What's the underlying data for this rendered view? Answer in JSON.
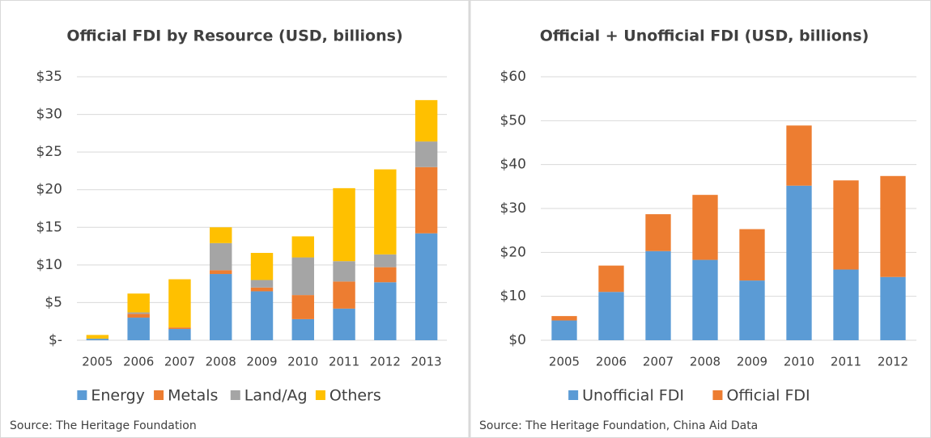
{
  "chart_data": [
    {
      "type": "stacked_bar",
      "title": "Official FDI by Resource (USD, billions)",
      "source": "Source:  The Heritage Foundation",
      "categories": [
        "2005",
        "2006",
        "2007",
        "2008",
        "2009",
        "2010",
        "2011",
        "2012",
        "2013"
      ],
      "series": [
        {
          "name": "Energy",
          "color": "#5b9bd5",
          "values": [
            0.2,
            3.0,
            1.5,
            8.8,
            6.5,
            2.8,
            4.2,
            7.7,
            14.2
          ]
        },
        {
          "name": "Metals",
          "color": "#ed7d31",
          "values": [
            0,
            0.5,
            0.2,
            0.5,
            0.5,
            3.2,
            3.6,
            2.0,
            8.8
          ]
        },
        {
          "name": "Land/Ag",
          "color": "#a5a5a5",
          "values": [
            0,
            0.2,
            0,
            3.6,
            1.0,
            5.0,
            2.7,
            1.7,
            3.4
          ]
        },
        {
          "name": "Others",
          "color": "#ffc000",
          "values": [
            0.5,
            2.5,
            6.4,
            2.1,
            3.6,
            2.8,
            9.7,
            11.3,
            5.5
          ]
        }
      ],
      "ylim": [
        0,
        35
      ],
      "yticks": [
        {
          "value": 0,
          "label": "$-"
        },
        {
          "value": 5,
          "label": "$5"
        },
        {
          "value": 10,
          "label": "$10"
        },
        {
          "value": 15,
          "label": "$15"
        },
        {
          "value": 20,
          "label": "$20"
        },
        {
          "value": 25,
          "label": "$25"
        },
        {
          "value": 30,
          "label": "$30"
        },
        {
          "value": 35,
          "label": "$35"
        }
      ],
      "grid": true
    },
    {
      "type": "stacked_bar",
      "title": "Official + Unofficial FDI (USD, billions)",
      "source": "Source:  The Heritage Foundation, China Aid Data",
      "categories": [
        "2005",
        "2006",
        "2007",
        "2008",
        "2009",
        "2010",
        "2011",
        "2012"
      ],
      "series": [
        {
          "name": "Unofficial FDI",
          "color": "#5b9bd5",
          "values": [
            4.5,
            11,
            20.3,
            18.3,
            13.6,
            35.2,
            16.1,
            14.4
          ]
        },
        {
          "name": "Official FDI",
          "color": "#ed7d31",
          "values": [
            1.0,
            6,
            8.4,
            14.8,
            11.7,
            13.7,
            20.3,
            23
          ]
        }
      ],
      "ylim": [
        0,
        60
      ],
      "yticks": [
        {
          "value": 0,
          "label": "$0"
        },
        {
          "value": 10,
          "label": "$10"
        },
        {
          "value": 20,
          "label": "$20"
        },
        {
          "value": 30,
          "label": "$30"
        },
        {
          "value": 40,
          "label": "$40"
        },
        {
          "value": 50,
          "label": "$50"
        },
        {
          "value": 60,
          "label": "$60"
        }
      ],
      "grid": true
    }
  ]
}
